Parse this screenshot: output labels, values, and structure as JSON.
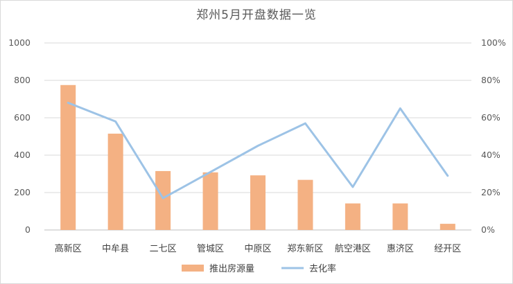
{
  "chart_data": {
    "type": "bar+line",
    "title": "郑州5月开盘数据一览",
    "categories": [
      "高新区",
      "中牟县",
      "二七区",
      "管城区",
      "中原区",
      "郑东新区",
      "航空港区",
      "惠济区",
      "经开区"
    ],
    "series": [
      {
        "name": "推出房源量",
        "type": "bar",
        "axis": "left",
        "color": "#F4B183",
        "values": [
          775,
          515,
          315,
          308,
          292,
          268,
          142,
          142,
          33
        ]
      },
      {
        "name": "去化率",
        "type": "line",
        "axis": "right",
        "color": "#9DC3E6",
        "values": [
          0.68,
          0.58,
          0.17,
          0.31,
          0.45,
          0.57,
          0.23,
          0.65,
          0.29
        ]
      }
    ],
    "y_left": {
      "range": [
        0,
        1000
      ],
      "ticks": [
        "0",
        "200",
        "400",
        "600",
        "800",
        "1000"
      ]
    },
    "y_right": {
      "range": [
        0,
        1
      ],
      "ticks": [
        "0%",
        "20%",
        "40%",
        "60%",
        "80%",
        "100%"
      ]
    },
    "grid": true,
    "legend_position": "bottom"
  }
}
